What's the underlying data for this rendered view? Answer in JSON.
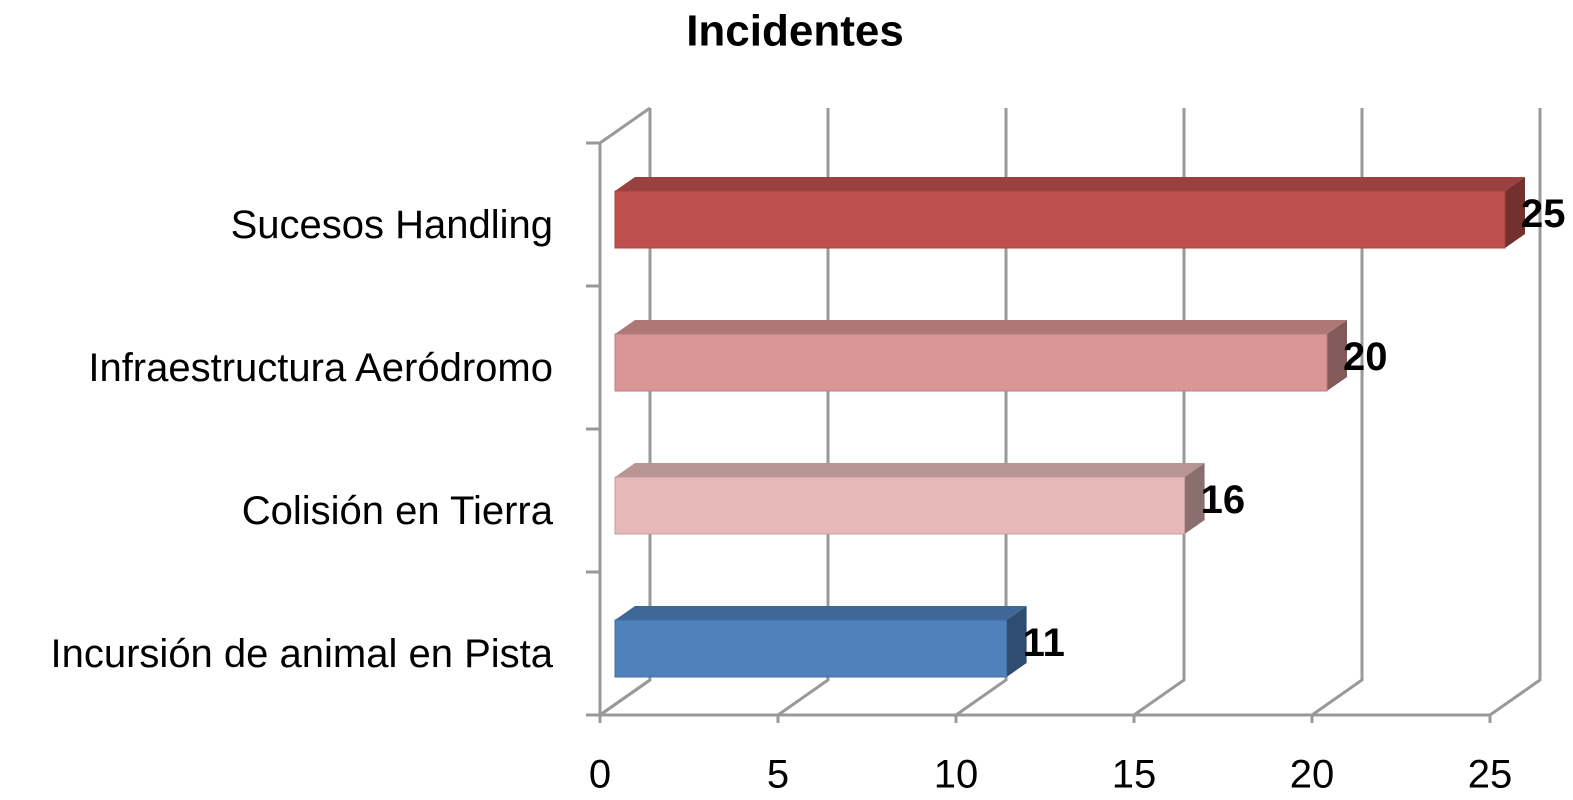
{
  "chart_data": {
    "type": "bar",
    "orientation": "horizontal",
    "title": "Incidentes",
    "categories": [
      "Sucesos Handling",
      "Infraestructura Aeródromo",
      "Colisión en Tierra",
      "Incursión de animal en Pista"
    ],
    "values": [
      25,
      20,
      16,
      11
    ],
    "colors": [
      "#c0504d",
      "#d99694",
      "#e6b9b8",
      "#4f81bd"
    ],
    "xlim": [
      0,
      25
    ],
    "xticks": [
      0,
      5,
      10,
      15,
      20,
      25
    ],
    "grid": true
  }
}
